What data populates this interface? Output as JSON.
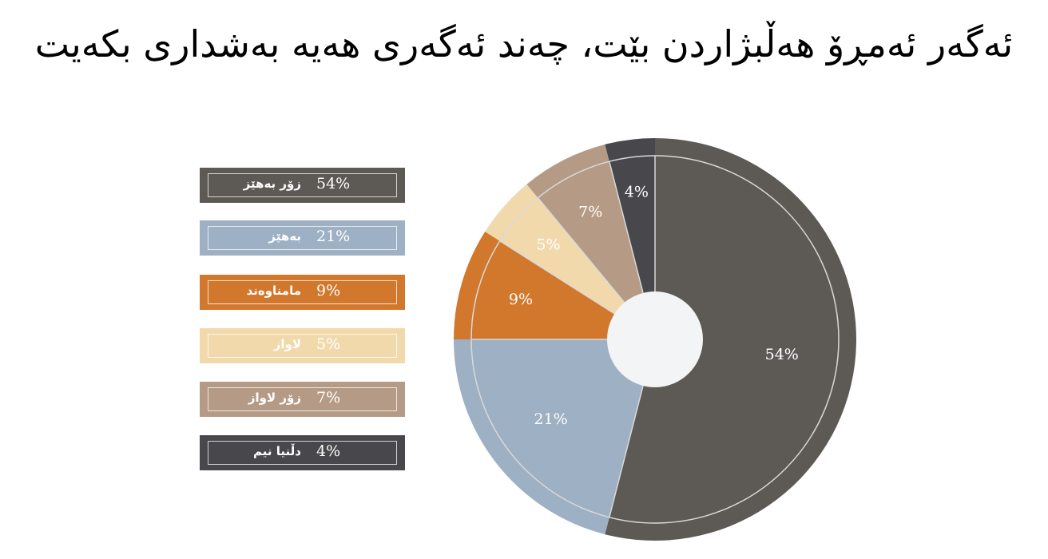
{
  "title": "ئەگەر ئەمڕۆ هەڵبژاردن بێت، چەند ئەگەری هەیە بەشداری بکەیت",
  "chart_data": {
    "type": "pie",
    "title": "ئەگەر ئەمڕۆ هەڵبژاردن بێت، چەند ئەگەری هەیە بەشداری بکەیت",
    "categories": [
      "زۆر بەهێز",
      "بەهێز",
      "مامناوەند",
      "لاواز",
      "زۆر لاواز",
      "دڵنیا نیم"
    ],
    "values": [
      54,
      21,
      9,
      5,
      7,
      4
    ],
    "value_labels": [
      "54%",
      "21%",
      "9%",
      "5%",
      "7%",
      "4%"
    ],
    "colors": [
      "#5d5955",
      "#9db0c4",
      "#d2782c",
      "#f2d9ac",
      "#b59b85",
      "#48474b"
    ],
    "legend_placement": "left",
    "donut": true
  }
}
